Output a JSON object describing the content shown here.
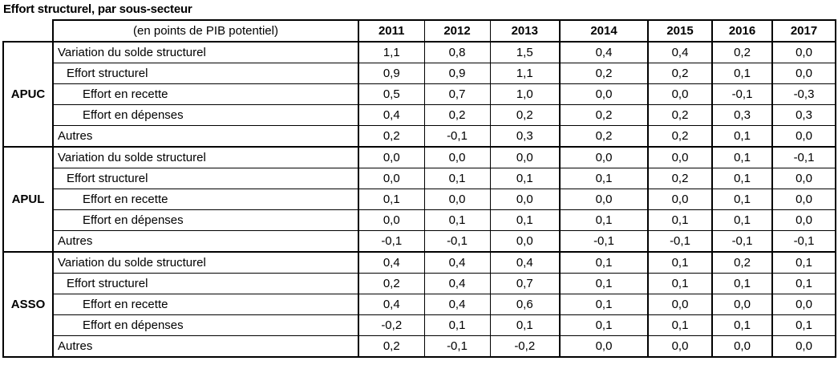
{
  "title": "Effort structurel, par sous-secteur",
  "colors": {
    "border": "#000000",
    "text": "#000000",
    "background": "#ffffff"
  },
  "table": {
    "unit_header": "(en points de PIB potentiel)",
    "years": [
      "2011",
      "2012",
      "2013",
      "2014",
      "2015",
      "2016",
      "2017"
    ],
    "sections": [
      {
        "sector": "APUC",
        "rows": [
          {
            "label": "Variation du solde structurel",
            "indent": 0,
            "values": [
              "1,1",
              "0,8",
              "1,5",
              "0,4",
              "0,4",
              "0,2",
              "0,0"
            ]
          },
          {
            "label": "Effort structurel",
            "indent": 1,
            "values": [
              "0,9",
              "0,9",
              "1,1",
              "0,2",
              "0,2",
              "0,1",
              "0,0"
            ]
          },
          {
            "label": "Effort en recette",
            "indent": 2,
            "values": [
              "0,5",
              "0,7",
              "1,0",
              "0,0",
              "0,0",
              "-0,1",
              "-0,3"
            ]
          },
          {
            "label": "Effort en dépenses",
            "indent": 2,
            "values": [
              "0,4",
              "0,2",
              "0,2",
              "0,2",
              "0,2",
              "0,3",
              "0,3"
            ]
          },
          {
            "label": "Autres",
            "indent": 0,
            "values": [
              "0,2",
              "-0,1",
              "0,3",
              "0,2",
              "0,2",
              "0,1",
              "0,0"
            ]
          }
        ]
      },
      {
        "sector": "APUL",
        "rows": [
          {
            "label": "Variation du solde structurel",
            "indent": 0,
            "values": [
              "0,0",
              "0,0",
              "0,0",
              "0,0",
              "0,0",
              "0,1",
              "-0,1"
            ]
          },
          {
            "label": "Effort structurel",
            "indent": 1,
            "values": [
              "0,0",
              "0,1",
              "0,1",
              "0,1",
              "0,2",
              "0,1",
              "0,0"
            ]
          },
          {
            "label": "Effort en recette",
            "indent": 2,
            "values": [
              "0,1",
              "0,0",
              "0,0",
              "0,0",
              "0,0",
              "0,1",
              "0,0"
            ]
          },
          {
            "label": "Effort en dépenses",
            "indent": 2,
            "values": [
              "0,0",
              "0,1",
              "0,1",
              "0,1",
              "0,1",
              "0,1",
              "0,0"
            ]
          },
          {
            "label": "Autres",
            "indent": 0,
            "values": [
              "-0,1",
              "-0,1",
              "0,0",
              "-0,1",
              "-0,1",
              "-0,1",
              "-0,1"
            ]
          }
        ]
      },
      {
        "sector": "ASSO",
        "rows": [
          {
            "label": "Variation du solde structurel",
            "indent": 0,
            "values": [
              "0,4",
              "0,4",
              "0,4",
              "0,1",
              "0,1",
              "0,2",
              "0,1"
            ]
          },
          {
            "label": "Effort structurel",
            "indent": 1,
            "values": [
              "0,2",
              "0,4",
              "0,7",
              "0,1",
              "0,1",
              "0,1",
              "0,1"
            ]
          },
          {
            "label": "Effort en recette",
            "indent": 2,
            "values": [
              "0,4",
              "0,4",
              "0,6",
              "0,1",
              "0,0",
              "0,0",
              "0,0"
            ]
          },
          {
            "label": "Effort en dépenses",
            "indent": 2,
            "values": [
              "-0,2",
              "0,1",
              "0,1",
              "0,1",
              "0,1",
              "0,1",
              "0,1"
            ]
          },
          {
            "label": "Autres",
            "indent": 0,
            "values": [
              "0,2",
              "-0,1",
              "-0,2",
              "0,0",
              "0,0",
              "0,0",
              "0,0"
            ]
          }
        ]
      }
    ]
  }
}
